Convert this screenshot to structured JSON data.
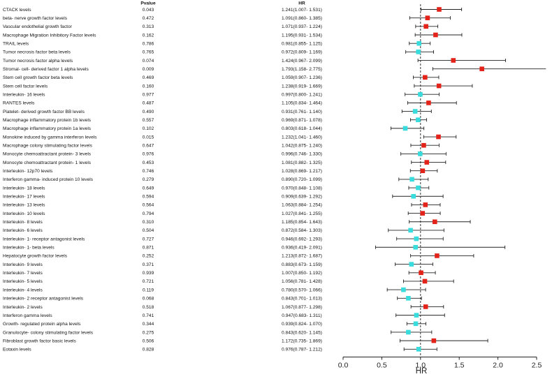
{
  "chart_data": {
    "type": "forest",
    "columns": {
      "exposure": "",
      "pvalue": "Pvalue",
      "hr": "HR"
    },
    "xlabel": "HR",
    "xlim": [
      0.0,
      2.5
    ],
    "xticks": [
      0.0,
      0.5,
      1.0,
      1.5,
      2.0,
      2.5
    ],
    "xtick_labels": [
      "0.0",
      "0.5",
      "1.0",
      "1.5",
      "2.0",
      "2.5"
    ],
    "reference_line": 1.0,
    "colors": {
      "significant": "#e3231a",
      "nonsignificant": "#39dcdc",
      "ci": "#222222",
      "axis": "#222222"
    },
    "rows": [
      {
        "label": "CTACK levels",
        "pvalue": "0.043",
        "hr_text": "1.241(1.007- 1.531)",
        "hr": 1.241,
        "lo": 1.007,
        "hi": 1.531,
        "significant": true
      },
      {
        "label": "beta- nerve growth factor levels",
        "pvalue": "0.472",
        "hr_text": "1.091(0.860- 1.385)",
        "hr": 1.091,
        "lo": 0.86,
        "hi": 1.385,
        "significant": true
      },
      {
        "label": "Vascular endothelial growth factor",
        "pvalue": "0.313",
        "hr_text": "1.071(0.937- 1.224)",
        "hr": 1.071,
        "lo": 0.937,
        "hi": 1.224,
        "significant": true
      },
      {
        "label": "Macrophage Migration Inhibitory Factor levels",
        "pvalue": "0.162",
        "hr_text": "1.195(0.931- 1.534)",
        "hr": 1.195,
        "lo": 0.931,
        "hi": 1.534,
        "significant": true
      },
      {
        "label": "TRAIL levels",
        "pvalue": "0.786",
        "hr_text": "0.981(0.855- 1.125)",
        "hr": 0.981,
        "lo": 0.855,
        "hi": 1.125,
        "significant": false
      },
      {
        "label": "Tumor necrosis factor beta levels",
        "pvalue": "0.765",
        "hr_text": "0.972(0.809- 1.169)",
        "hr": 0.972,
        "lo": 0.809,
        "hi": 1.169,
        "significant": false
      },
      {
        "label": "Tumor necrosis factor alpha levels",
        "pvalue": "0.074",
        "hr_text": "1.424(0.967- 2.099)",
        "hr": 1.424,
        "lo": 0.967,
        "hi": 2.099,
        "significant": true
      },
      {
        "label": "Stromal- cell- derived factor 1 alpha levels",
        "pvalue": "0.009",
        "hr_text": "1.793(1.158- 2.775)",
        "hr": 1.793,
        "lo": 1.158,
        "hi": 2.775,
        "significant": true
      },
      {
        "label": "Stem cell growth factor beta levels",
        "pvalue": "0.469",
        "hr_text": "1.059(0.907- 1.236)",
        "hr": 1.059,
        "lo": 0.907,
        "hi": 1.236,
        "significant": true
      },
      {
        "label": "Stem cell factor levels",
        "pvalue": "0.160",
        "hr_text": "1.238(0.919- 1.669)",
        "hr": 1.238,
        "lo": 0.919,
        "hi": 1.669,
        "significant": true
      },
      {
        "label": "Interleukin- 16 levels",
        "pvalue": "0.977",
        "hr_text": "0.997(0.800- 1.241)",
        "hr": 0.997,
        "lo": 0.8,
        "hi": 1.241,
        "significant": false
      },
      {
        "label": "RANTES levels",
        "pvalue": "0.487",
        "hr_text": "1.105(0.834- 1.464)",
        "hr": 1.105,
        "lo": 0.834,
        "hi": 1.464,
        "significant": true
      },
      {
        "label": "Platelet- derived growth factor BB levels",
        "pvalue": "0.490",
        "hr_text": "0.931(0.761- 1.140)",
        "hr": 0.931,
        "lo": 0.761,
        "hi": 1.14,
        "significant": false
      },
      {
        "label": "Macrophage inflammatory protein 1b levels",
        "pvalue": "0.557",
        "hr_text": "0.969(0.871- 1.078)",
        "hr": 0.969,
        "lo": 0.871,
        "hi": 1.078,
        "significant": false
      },
      {
        "label": "Macrophage inflammatory protein 1a levels",
        "pvalue": "0.102",
        "hr_text": "0.803(0.618- 1.044)",
        "hr": 0.803,
        "lo": 0.618,
        "hi": 1.044,
        "significant": false
      },
      {
        "label": "Monokine induced by gamma interferon levels",
        "pvalue": "0.015",
        "hr_text": "1.232(1.041- 1.460)",
        "hr": 1.232,
        "lo": 1.041,
        "hi": 1.46,
        "significant": true
      },
      {
        "label": "Macrophage colony stimulating factor levels",
        "pvalue": "0.647",
        "hr_text": "1.042(0.875- 1.240)",
        "hr": 1.042,
        "lo": 0.875,
        "hi": 1.24,
        "significant": true
      },
      {
        "label": "Monocyte chemoattractant protein- 3 levels",
        "pvalue": "0.976",
        "hr_text": "0.996(0.746- 1.330)",
        "hr": 0.996,
        "lo": 0.746,
        "hi": 1.33,
        "significant": false
      },
      {
        "label": "Monocyte chemoattractant protein- 1 levels",
        "pvalue": "0.453",
        "hr_text": "1.081(0.882- 1.325)",
        "hr": 1.081,
        "lo": 0.882,
        "hi": 1.325,
        "significant": true
      },
      {
        "label": "Interleukin- 12p70 levels",
        "pvalue": "0.746",
        "hr_text": "1.028(0.869- 1.217)",
        "hr": 1.028,
        "lo": 0.869,
        "hi": 1.217,
        "significant": true
      },
      {
        "label": "Interferon gamma- induced protein 10 levels",
        "pvalue": "0.279",
        "hr_text": "0.890(0.720- 1.099)",
        "hr": 0.89,
        "lo": 0.72,
        "hi": 1.099,
        "significant": false
      },
      {
        "label": "Interleukin- 18 levels",
        "pvalue": "0.649",
        "hr_text": "0.970(0.848- 1.108)",
        "hr": 0.97,
        "lo": 0.848,
        "hi": 1.108,
        "significant": false
      },
      {
        "label": "Interleukin- 17 levels",
        "pvalue": "0.594",
        "hr_text": "0.909(0.639- 1.292)",
        "hr": 0.909,
        "lo": 0.639,
        "hi": 1.292,
        "significant": false
      },
      {
        "label": "Interleukin- 13 levels",
        "pvalue": "0.564",
        "hr_text": "1.063(0.884- 1.254)",
        "hr": 1.063,
        "lo": 0.884,
        "hi": 1.254,
        "significant": true
      },
      {
        "label": "Interleukin- 10 levels",
        "pvalue": "0.794",
        "hr_text": "1.027(0.841- 1.255)",
        "hr": 1.027,
        "lo": 0.841,
        "hi": 1.255,
        "significant": true
      },
      {
        "label": "Interleukin- 8 levels",
        "pvalue": "0.310",
        "hr_text": "1.185(0.854- 1.643)",
        "hr": 1.185,
        "lo": 0.854,
        "hi": 1.643,
        "significant": true
      },
      {
        "label": "Interleukin- 6 levels",
        "pvalue": "0.504",
        "hr_text": "0.872(0.584- 1.303)",
        "hr": 0.872,
        "lo": 0.584,
        "hi": 1.303,
        "significant": false
      },
      {
        "label": "Interleukin- 1- receptor antagonist levels",
        "pvalue": "0.727",
        "hr_text": "0.946(0.692- 1.293)",
        "hr": 0.946,
        "lo": 0.692,
        "hi": 1.293,
        "significant": false
      },
      {
        "label": "Interleukin- 1- beta levels",
        "pvalue": "0.871",
        "hr_text": "0.936(0.419- 2.091)",
        "hr": 0.936,
        "lo": 0.419,
        "hi": 2.091,
        "significant": false
      },
      {
        "label": "Hepatocyte growth factor levels",
        "pvalue": "0.252",
        "hr_text": "1.213(0.872- 1.687)",
        "hr": 1.213,
        "lo": 0.872,
        "hi": 1.687,
        "significant": true
      },
      {
        "label": "Interleukin- 9 levels",
        "pvalue": "0.371",
        "hr_text": "0.883(0.673- 1.159)",
        "hr": 0.883,
        "lo": 0.673,
        "hi": 1.159,
        "significant": false
      },
      {
        "label": "Interleukin- 7 levels",
        "pvalue": "0.939",
        "hr_text": "1.007(0.850- 1.192)",
        "hr": 1.007,
        "lo": 0.85,
        "hi": 1.192,
        "significant": true
      },
      {
        "label": "Interleukin- 5 levels",
        "pvalue": "0.721",
        "hr_text": "1.056(0.781- 1.428)",
        "hr": 1.056,
        "lo": 0.781,
        "hi": 1.428,
        "significant": true
      },
      {
        "label": "Interleukin- 4 levels",
        "pvalue": "0.119",
        "hr_text": "0.780(0.570- 1.066)",
        "hr": 0.78,
        "lo": 0.57,
        "hi": 1.066,
        "significant": false
      },
      {
        "label": "Interleukin- 2 receptor antagonist levels",
        "pvalue": "0.068",
        "hr_text": "0.843(0.701- 1.013)",
        "hr": 0.843,
        "lo": 0.701,
        "hi": 1.013,
        "significant": false
      },
      {
        "label": "Interleukin- 2 levels",
        "pvalue": "0.518",
        "hr_text": "1.067(0.877- 1.298)",
        "hr": 1.067,
        "lo": 0.877,
        "hi": 1.298,
        "significant": true
      },
      {
        "label": "Interferon gamma levels",
        "pvalue": "0.741",
        "hr_text": "0.947(0.683- 1.311)",
        "hr": 0.947,
        "lo": 0.683,
        "hi": 1.311,
        "significant": false
      },
      {
        "label": "Growth- regulated protein alpha levels",
        "pvalue": "0.344",
        "hr_text": "0.939(0.824- 1.070)",
        "hr": 0.939,
        "lo": 0.824,
        "hi": 1.07,
        "significant": false
      },
      {
        "label": "Granulocyte- colony stimulating factor levels",
        "pvalue": "0.275",
        "hr_text": "0.843(0.620- 1.145)",
        "hr": 0.843,
        "lo": 0.62,
        "hi": 1.145,
        "significant": false
      },
      {
        "label": "Fibroblast growth factor basic levels",
        "pvalue": "0.506",
        "hr_text": "1.172(0.735- 1.869)",
        "hr": 1.172,
        "lo": 0.735,
        "hi": 1.869,
        "significant": true
      },
      {
        "label": "Eotaxin levels",
        "pvalue": "0.828",
        "hr_text": "0.976(0.787- 1.212)",
        "hr": 0.976,
        "lo": 0.787,
        "hi": 1.212,
        "significant": false
      }
    ]
  }
}
